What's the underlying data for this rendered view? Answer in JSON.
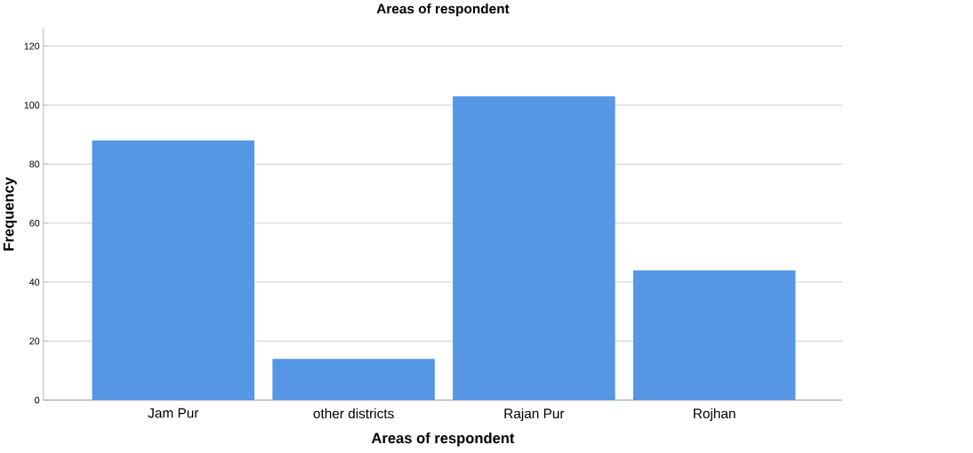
{
  "chart_data": {
    "type": "bar",
    "title": "Areas of respondent",
    "xlabel": "Areas of respondent",
    "ylabel": "Frequency",
    "categories": [
      "Jam Pur",
      "other districts",
      "Rajan Pur",
      "Rojhan"
    ],
    "values": [
      88,
      14,
      103,
      44
    ],
    "color": "#5596e5",
    "ylim": [
      0,
      126
    ],
    "yticks": [
      0,
      20,
      40,
      60,
      80,
      100,
      120
    ],
    "grid": "y"
  }
}
